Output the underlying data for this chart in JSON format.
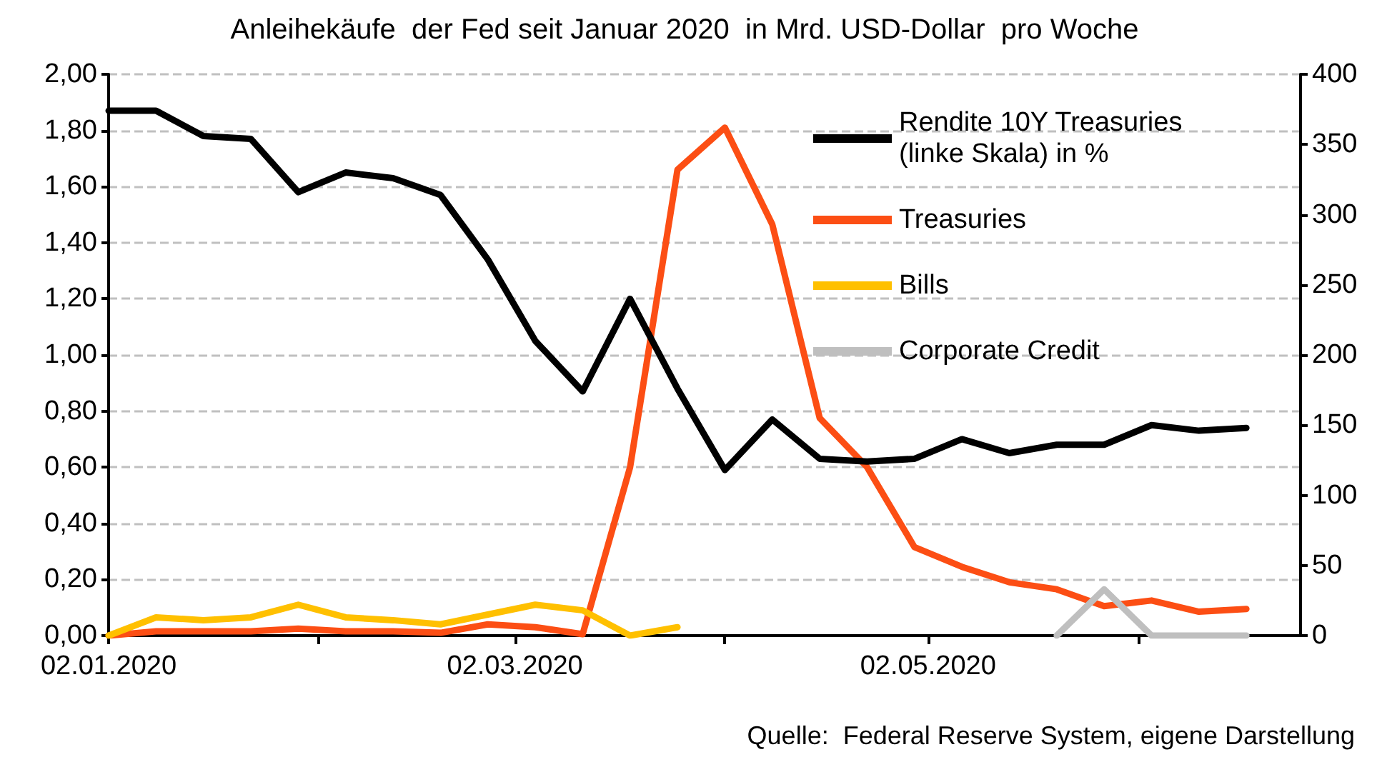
{
  "chart_data": {
    "type": "line",
    "title": "Anleihekäufe  der Fed seit Januar 2020  in Mrd. USD-Dollar  pro Woche",
    "x": [
      "2020-01-02",
      "2020-01-09",
      "2020-01-16",
      "2020-01-23",
      "2020-01-30",
      "2020-02-06",
      "2020-02-13",
      "2020-02-20",
      "2020-02-27",
      "2020-03-05",
      "2020-03-12",
      "2020-03-19",
      "2020-03-26",
      "2020-04-02",
      "2020-04-09",
      "2020-04-16",
      "2020-04-23",
      "2020-04-30",
      "2020-05-07",
      "2020-05-14",
      "2020-05-21",
      "2020-05-28",
      "2020-06-04",
      "2020-06-11",
      "2020-06-18"
    ],
    "xlim": [
      "2020-01-02",
      "2020-06-26"
    ],
    "xticks": [
      {
        "value": "2020-01-02",
        "label": "02.01.2020"
      },
      {
        "value": "2020-02-02",
        "label": null
      },
      {
        "value": "2020-03-02",
        "label": "02.03.2020"
      },
      {
        "value": "2020-04-02",
        "label": null
      },
      {
        "value": "2020-05-02",
        "label": "02.05.2020"
      },
      {
        "value": "2020-06-02",
        "label": null
      }
    ],
    "ylim": [
      0,
      2
    ],
    "yticks": [
      {
        "value": 0,
        "label": "0,00"
      },
      {
        "value": 0.2,
        "label": "0,20"
      },
      {
        "value": 0.4,
        "label": "0,40"
      },
      {
        "value": 0.6,
        "label": "0,60"
      },
      {
        "value": 0.8,
        "label": "0,80"
      },
      {
        "value": 1,
        "label": "1,00"
      },
      {
        "value": 1.2,
        "label": "1,20"
      },
      {
        "value": 1.4,
        "label": "1,40"
      },
      {
        "value": 1.6,
        "label": "1,60"
      },
      {
        "value": 1.8,
        "label": "1,80"
      },
      {
        "value": 2,
        "label": "2,00"
      }
    ],
    "y2lim": [
      0,
      400
    ],
    "y2ticks": [
      0,
      50,
      100,
      150,
      200,
      250,
      300,
      350,
      400
    ],
    "series": [
      {
        "name": "Rendite 10Y Treasuries (linke Skala) in %",
        "color": "#000000",
        "values": [
          1.87,
          1.87,
          1.78,
          1.77,
          1.58,
          1.65,
          1.63,
          1.57,
          1.34,
          1.05,
          0.87,
          1.2,
          0.88,
          0.59,
          0.77,
          0.63,
          0.62,
          0.63,
          0.7,
          0.65,
          0.68,
          0.68,
          0.75,
          0.73,
          0.74
        ]
      },
      {
        "name": "Treasuries",
        "color": "#fc4e14",
        "axis": "y2",
        "values": [
          0,
          3,
          3,
          3,
          5,
          3,
          3,
          2,
          8,
          6,
          1,
          120,
          332,
          362,
          293,
          155,
          120,
          63,
          49,
          38,
          33,
          21,
          25,
          17,
          19
        ]
      },
      {
        "name": "Bills",
        "color": "#ffc000",
        "axis": "y2",
        "values": [
          0,
          13,
          11,
          13,
          22,
          13,
          11,
          8,
          15,
          22,
          18,
          0,
          6,
          null,
          null,
          null,
          null,
          null,
          null,
          null,
          null,
          null,
          null,
          null,
          null
        ]
      },
      {
        "name": "Corporate Credit",
        "color": "#bfbfbf",
        "axis": "y2",
        "values": [
          null,
          null,
          null,
          null,
          null,
          null,
          null,
          null,
          null,
          null,
          null,
          null,
          null,
          null,
          null,
          null,
          null,
          null,
          null,
          null,
          0,
          33,
          0,
          0,
          0
        ]
      }
    ],
    "grid": "y",
    "legend": "top right",
    "marker": "none",
    "line_style": "solid",
    "annotations": [
      "Quelle:  Federal Reserve System, eigene Darstellung"
    ]
  }
}
